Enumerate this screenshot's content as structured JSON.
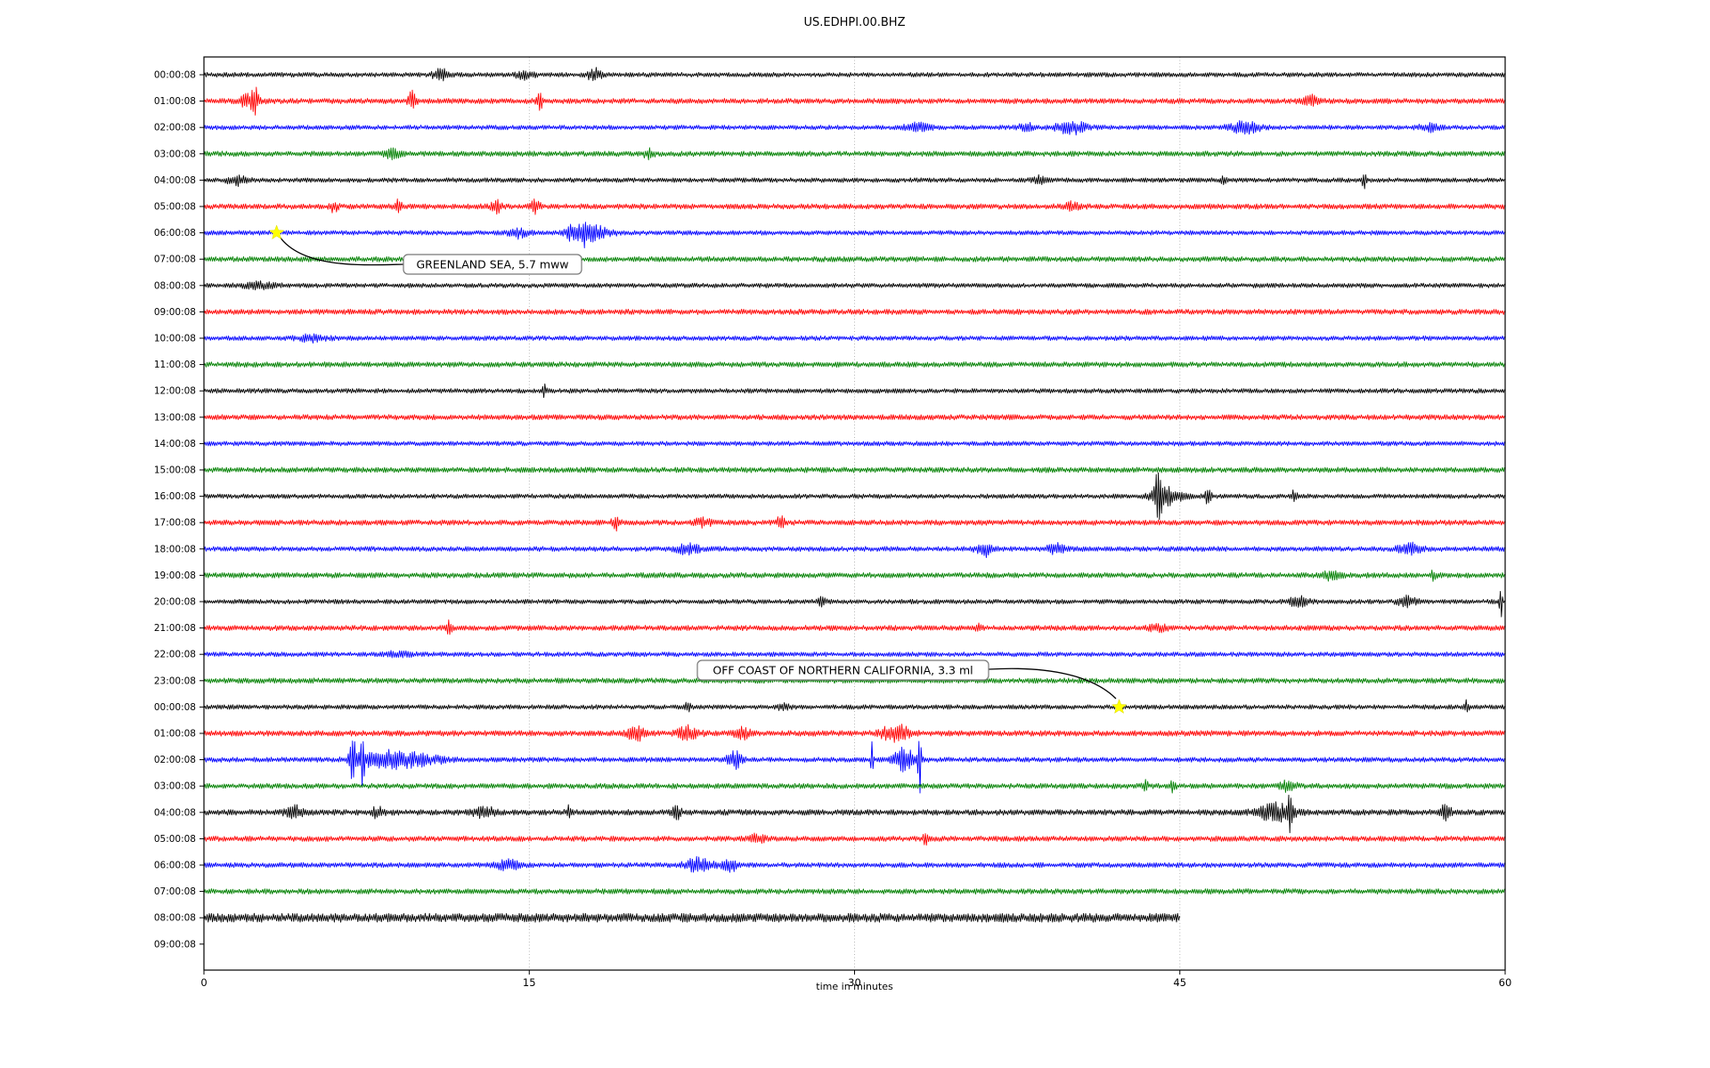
{
  "title": "US.EDHPI.00.BHZ",
  "chart_data": {
    "type": "line",
    "subtype": "seismogram-dayplot",
    "title": "US.EDHPI.00.BHZ",
    "xlabel": "time in minutes",
    "x_range": [
      0,
      60
    ],
    "x_ticks": [
      0,
      15,
      30,
      45,
      60
    ],
    "grid_minutes": [
      15,
      30,
      45
    ],
    "grid_style": "dotted",
    "grid_color": "#b0b0b0",
    "star_color": "#ffff00",
    "trace_color_cycle": [
      "#000000",
      "#ff0000",
      "#0000ff",
      "#008000"
    ],
    "rows": [
      {
        "label": "00:00:08",
        "color": "#000000",
        "amp": 2.6,
        "end": 60,
        "events": [
          [
            10.9,
            6,
            0.25
          ],
          [
            14.8,
            4,
            0.3
          ],
          [
            18.0,
            8,
            0.2
          ]
        ]
      },
      {
        "label": "01:00:08",
        "color": "#ff0000",
        "amp": 3.0,
        "end": 60,
        "events": [
          [
            2.1,
            7,
            0.3
          ],
          [
            2.35,
            18,
            0.08
          ],
          [
            9.6,
            10,
            0.12
          ],
          [
            15.5,
            8,
            0.1
          ],
          [
            51.0,
            6,
            0.25
          ]
        ]
      },
      {
        "label": "02:00:08",
        "color": "#0000ff",
        "amp": 2.6,
        "end": 60,
        "events": [
          [
            32.9,
            4,
            0.4
          ],
          [
            37.9,
            5,
            0.2
          ],
          [
            40.0,
            7,
            0.5
          ],
          [
            48.0,
            6,
            0.5
          ],
          [
            56.5,
            4,
            0.3
          ]
        ]
      },
      {
        "label": "03:00:08",
        "color": "#008000",
        "amp": 3.0,
        "end": 60,
        "events": [
          [
            8.7,
            4,
            0.25
          ],
          [
            20.5,
            5,
            0.15
          ]
        ]
      },
      {
        "label": "04:00:08",
        "color": "#000000",
        "amp": 2.6,
        "end": 60,
        "events": [
          [
            1.5,
            5,
            0.3
          ],
          [
            38.5,
            4,
            0.2
          ],
          [
            47.0,
            7,
            0.07
          ],
          [
            53.5,
            8,
            0.07
          ]
        ]
      },
      {
        "label": "05:00:08",
        "color": "#ff0000",
        "amp": 3.0,
        "end": 60,
        "events": [
          [
            6.0,
            6,
            0.12
          ],
          [
            9.0,
            7,
            0.12
          ],
          [
            13.5,
            8,
            0.15
          ],
          [
            15.3,
            7,
            0.15
          ],
          [
            40.0,
            4,
            0.3
          ]
        ]
      },
      {
        "label": "06:00:08",
        "color": "#0000ff",
        "amp": 2.6,
        "end": 60,
        "events": [
          [
            14.5,
            5,
            0.3
          ],
          [
            16.9,
            7,
            0.2
          ],
          [
            17.6,
            12,
            0.25
          ],
          [
            18.1,
            6,
            0.5
          ]
        ]
      },
      {
        "label": "07:00:08",
        "color": "#008000",
        "amp": 3.0,
        "end": 60,
        "events": []
      },
      {
        "label": "08:00:08",
        "color": "#000000",
        "amp": 2.6,
        "end": 60,
        "events": [
          [
            2.5,
            3,
            0.6
          ]
        ]
      },
      {
        "label": "09:00:08",
        "color": "#ff0000",
        "amp": 3.0,
        "end": 60,
        "events": []
      },
      {
        "label": "10:00:08",
        "color": "#0000ff",
        "amp": 2.6,
        "end": 60,
        "events": [
          [
            5.0,
            3,
            0.5
          ]
        ]
      },
      {
        "label": "11:00:08",
        "color": "#008000",
        "amp": 3.0,
        "end": 60,
        "events": []
      },
      {
        "label": "12:00:08",
        "color": "#000000",
        "amp": 2.6,
        "end": 60,
        "events": [
          [
            15.7,
            6,
            0.06
          ]
        ]
      },
      {
        "label": "13:00:08",
        "color": "#ff0000",
        "amp": 3.0,
        "end": 60,
        "events": []
      },
      {
        "label": "14:00:08",
        "color": "#0000ff",
        "amp": 2.6,
        "end": 60,
        "events": []
      },
      {
        "label": "15:00:08",
        "color": "#008000",
        "amp": 3.0,
        "end": 60,
        "events": []
      },
      {
        "label": "16:00:08",
        "color": "#000000",
        "amp": 2.6,
        "end": 60,
        "events": [
          [
            44.0,
            22,
            0.12
          ],
          [
            44.4,
            9,
            0.5
          ],
          [
            46.3,
            7,
            0.15
          ],
          [
            50.3,
            6,
            0.12
          ]
        ]
      },
      {
        "label": "17:00:08",
        "color": "#ff0000",
        "amp": 3.0,
        "end": 60,
        "events": [
          [
            19.0,
            9,
            0.12
          ],
          [
            23.0,
            4,
            0.3
          ],
          [
            26.6,
            8,
            0.12
          ]
        ]
      },
      {
        "label": "18:00:08",
        "color": "#0000ff",
        "amp": 2.8,
        "end": 60,
        "events": [
          [
            22.3,
            5,
            0.4
          ],
          [
            36.0,
            8,
            0.25
          ],
          [
            39.3,
            5,
            0.3
          ],
          [
            55.6,
            6,
            0.35
          ]
        ]
      },
      {
        "label": "19:00:08",
        "color": "#008000",
        "amp": 3.0,
        "end": 60,
        "events": [
          [
            52.0,
            5,
            0.25
          ],
          [
            56.7,
            6,
            0.08
          ]
        ]
      },
      {
        "label": "20:00:08",
        "color": "#000000",
        "amp": 2.6,
        "end": 60,
        "events": [
          [
            28.5,
            5,
            0.15
          ],
          [
            50.5,
            5,
            0.35
          ],
          [
            55.5,
            5,
            0.3
          ],
          [
            59.8,
            30,
            0.04
          ]
        ]
      },
      {
        "label": "21:00:08",
        "color": "#ff0000",
        "amp": 3.0,
        "end": 60,
        "events": [
          [
            11.3,
            7,
            0.08
          ],
          [
            35.7,
            7,
            0.08
          ],
          [
            44.0,
            4,
            0.3
          ]
        ]
      },
      {
        "label": "22:00:08",
        "color": "#0000ff",
        "amp": 2.6,
        "end": 60,
        "events": [
          [
            9.0,
            3,
            0.4
          ]
        ]
      },
      {
        "label": "23:00:08",
        "color": "#008000",
        "amp": 3.0,
        "end": 60,
        "events": []
      },
      {
        "label": "00:00:08",
        "color": "#000000",
        "amp": 2.6,
        "end": 60,
        "events": [
          [
            22.3,
            6,
            0.08
          ],
          [
            26.8,
            4,
            0.2
          ],
          [
            58.2,
            6,
            0.08
          ]
        ]
      },
      {
        "label": "01:00:08",
        "color": "#ff0000",
        "amp": 3.2,
        "end": 60,
        "events": [
          [
            19.9,
            9,
            0.25
          ],
          [
            22.3,
            7,
            0.35
          ],
          [
            24.8,
            5,
            0.3
          ],
          [
            31.9,
            9,
            0.45
          ]
        ]
      },
      {
        "label": "02:00:08",
        "color": "#0000ff",
        "amp": 2.8,
        "end": 60,
        "events": [
          [
            6.85,
            22,
            0.12
          ],
          [
            7.3,
            26,
            0.08
          ],
          [
            8.3,
            9,
            0.8
          ],
          [
            10.0,
            5,
            0.8
          ],
          [
            24.5,
            10,
            0.25
          ],
          [
            30.8,
            18,
            0.04
          ],
          [
            32.3,
            12,
            0.35
          ],
          [
            33.0,
            40,
            0.05
          ]
        ]
      },
      {
        "label": "03:00:08",
        "color": "#008000",
        "amp": 3.0,
        "end": 60,
        "events": [
          [
            43.4,
            8,
            0.08
          ],
          [
            44.7,
            7,
            0.08
          ],
          [
            50.0,
            5,
            0.25
          ]
        ]
      },
      {
        "label": "04:00:08",
        "color": "#000000",
        "amp": 3.2,
        "end": 60,
        "events": [
          [
            4.2,
            6,
            0.3
          ],
          [
            8.0,
            5,
            0.2
          ],
          [
            13.0,
            5,
            0.4
          ],
          [
            16.8,
            6,
            0.08
          ],
          [
            21.8,
            6,
            0.15
          ],
          [
            49.4,
            9,
            0.6
          ],
          [
            50.1,
            25,
            0.08
          ],
          [
            57.2,
            7,
            0.25
          ]
        ]
      },
      {
        "label": "05:00:08",
        "color": "#ff0000",
        "amp": 3.0,
        "end": 60,
        "events": [
          [
            25.5,
            4,
            0.3
          ],
          [
            33.3,
            9,
            0.08
          ]
        ]
      },
      {
        "label": "06:00:08",
        "color": "#0000ff",
        "amp": 2.8,
        "end": 60,
        "events": [
          [
            14.0,
            5,
            0.35
          ],
          [
            22.8,
            7,
            0.45
          ],
          [
            24.3,
            6,
            0.25
          ]
        ]
      },
      {
        "label": "07:00:08",
        "color": "#008000",
        "amp": 3.0,
        "end": 60,
        "events": []
      },
      {
        "label": "08:00:08",
        "color": "#000000",
        "amp": 5.0,
        "end": 45,
        "events": []
      },
      {
        "label": "09:00:08",
        "color": null,
        "amp": 0,
        "end": 0,
        "events": []
      }
    ],
    "annotations": [
      {
        "text": "GREENLAND SEA, 5.7 mww",
        "row_index": 6,
        "row_label": "06:00:08",
        "minute": 3.35
      },
      {
        "text": "OFF COAST OF NORTHERN CALIFORNIA, 3.3 ml",
        "row_index": 24,
        "row_label": "00:00:08",
        "minute": 42.2
      }
    ]
  }
}
